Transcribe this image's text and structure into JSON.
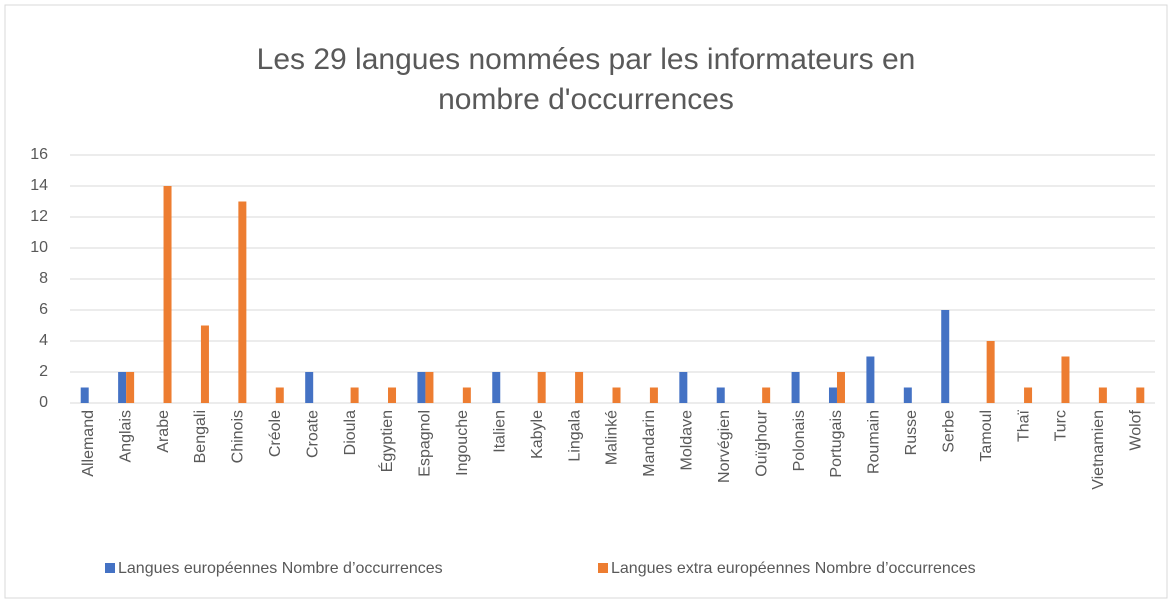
{
  "chart_data": {
    "type": "bar",
    "title": "Les 29 langues nommées par les informateurs en nombre d'occurrences",
    "categories": [
      "Allemand",
      "Anglais",
      "Arabe",
      "Bengali",
      "Chinois",
      "Créole",
      "Croate",
      "Dioula",
      "Égyptien",
      "Espagnol",
      "Ingouche",
      "Italien",
      "Kabyle",
      "Lingala",
      "Malinké",
      "Mandarin",
      "Moldave",
      "Norvégien",
      "Ouïghour",
      "Polonais",
      "Portugais",
      "Roumain",
      "Russe",
      "Serbe",
      "Tamoul",
      "Thaï",
      "Turc",
      "Vietnamien",
      "Wolof"
    ],
    "series": [
      {
        "name": "Langues européennes Nombre d’occurrences",
        "color": "#4472c4",
        "values": [
          1,
          2,
          null,
          null,
          null,
          null,
          2,
          null,
          null,
          2,
          null,
          2,
          null,
          null,
          null,
          null,
          2,
          1,
          null,
          2,
          1,
          3,
          1,
          6,
          null,
          null,
          null,
          null,
          null
        ]
      },
      {
        "name": "Langues extra européennes Nombre d’occurrences",
        "color": "#ed7d31",
        "values": [
          null,
          2,
          14,
          5,
          13,
          1,
          null,
          1,
          1,
          2,
          1,
          null,
          2,
          2,
          1,
          1,
          null,
          null,
          1,
          null,
          2,
          null,
          null,
          null,
          4,
          1,
          3,
          1,
          1
        ]
      }
    ],
    "ylim": [
      0,
      16
    ],
    "yticks": [
      0,
      2,
      4,
      6,
      8,
      10,
      12,
      14,
      16
    ],
    "grid": true,
    "legend": "bottom"
  }
}
